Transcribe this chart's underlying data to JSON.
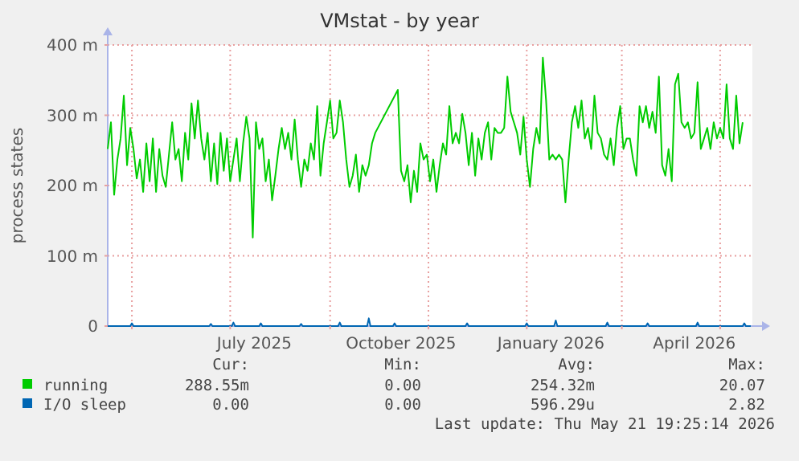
{
  "chart_data": {
    "type": "line",
    "title": "VMstat - by year",
    "ylabel": "process states",
    "xlim": [
      "2025-04-16",
      "2026-05-21"
    ],
    "xticks": [
      {
        "value": "2025-05-01",
        "label": null
      },
      {
        "value": "2025-07-01",
        "label": null
      },
      {
        "value": "2025-07-16",
        "label": "July 2025"
      },
      {
        "value": "2025-09-01",
        "label": null
      },
      {
        "value": "2025-10-15",
        "label": "October 2025"
      },
      {
        "value": "2025-11-01",
        "label": null
      },
      {
        "value": "2026-01-01",
        "label": null
      },
      {
        "value": "2026-01-16",
        "label": "January 2026"
      },
      {
        "value": "2026-03-01",
        "label": null
      },
      {
        "value": "2026-04-15",
        "label": "April 2026"
      },
      {
        "value": "2026-05-01",
        "label": null
      }
    ],
    "ylim": [
      0,
      400
    ],
    "yticks": [
      0,
      {
        "value": 100,
        "label": "100 m"
      },
      {
        "value": 200,
        "label": "200 m"
      },
      {
        "value": 300,
        "label": "300 m"
      },
      {
        "value": 400,
        "label": "400 m"
      }
    ],
    "grid": true,
    "legend": "bottom",
    "series": [
      {
        "name": "running",
        "color": "#00cc00",
        "x": [
          "2025-04-16",
          "2025-04-18",
          "2025-04-20",
          "2025-04-22",
          "2025-04-24",
          "2025-04-26",
          "2025-04-28",
          "2025-04-30",
          "2025-05-02",
          "2025-05-04",
          "2025-05-06",
          "2025-05-08",
          "2025-05-10",
          "2025-05-12",
          "2025-05-14",
          "2025-05-16",
          "2025-05-18",
          "2025-05-20",
          "2025-05-22",
          "2025-05-24",
          "2025-05-26",
          "2025-05-28",
          "2025-05-30",
          "2025-06-01",
          "2025-06-03",
          "2025-06-05",
          "2025-06-07",
          "2025-06-09",
          "2025-06-11",
          "2025-06-13",
          "2025-06-15",
          "2025-06-17",
          "2025-06-19",
          "2025-06-21",
          "2025-06-23",
          "2025-06-25",
          "2025-06-27",
          "2025-06-29",
          "2025-07-01",
          "2025-07-03",
          "2025-07-05",
          "2025-07-07",
          "2025-07-09",
          "2025-07-11",
          "2025-07-13",
          "2025-07-15",
          "2025-07-17",
          "2025-07-19",
          "2025-07-21",
          "2025-07-23",
          "2025-07-25",
          "2025-07-27",
          "2025-07-29",
          "2025-07-31",
          "2025-08-02",
          "2025-08-04",
          "2025-08-06",
          "2025-08-08",
          "2025-08-10",
          "2025-08-12",
          "2025-08-14",
          "2025-08-16",
          "2025-08-18",
          "2025-08-20",
          "2025-08-22",
          "2025-08-24",
          "2025-08-26",
          "2025-08-28",
          "2025-08-30",
          "2025-09-01",
          "2025-09-03",
          "2025-09-05",
          "2025-09-07",
          "2025-09-09",
          "2025-09-11",
          "2025-09-13",
          "2025-09-15",
          "2025-09-17",
          "2025-09-19",
          "2025-09-21",
          "2025-09-23",
          "2025-09-25",
          "2025-09-27",
          "2025-09-29",
          "2025-10-13",
          "2025-10-15",
          "2025-10-17",
          "2025-10-19",
          "2025-10-21",
          "2025-10-23",
          "2025-10-25",
          "2025-10-27",
          "2025-10-29",
          "2025-10-31",
          "2025-11-02",
          "2025-11-04",
          "2025-11-06",
          "2025-11-08",
          "2025-11-10",
          "2025-11-12",
          "2025-11-14",
          "2025-11-16",
          "2025-11-18",
          "2025-11-20",
          "2025-11-22",
          "2025-11-24",
          "2025-11-26",
          "2025-11-28",
          "2025-11-30",
          "2025-12-02",
          "2025-12-04",
          "2025-12-06",
          "2025-12-08",
          "2025-12-10",
          "2025-12-12",
          "2025-12-14",
          "2025-12-16",
          "2025-12-18",
          "2025-12-20",
          "2025-12-22",
          "2025-12-24",
          "2025-12-26",
          "2025-12-28",
          "2025-12-30",
          "2026-01-01",
          "2026-01-03",
          "2026-01-05",
          "2026-01-07",
          "2026-01-09",
          "2026-01-11",
          "2026-01-13",
          "2026-01-15",
          "2026-01-17",
          "2026-01-19",
          "2026-01-21",
          "2026-01-23",
          "2026-01-25",
          "2026-01-27",
          "2026-01-29",
          "2026-01-31",
          "2026-02-02",
          "2026-02-04",
          "2026-02-06",
          "2026-02-08",
          "2026-02-10",
          "2026-02-12",
          "2026-02-14",
          "2026-02-16",
          "2026-02-18",
          "2026-02-20",
          "2026-02-22",
          "2026-02-24",
          "2026-02-26",
          "2026-02-28",
          "2026-03-02",
          "2026-03-04",
          "2026-03-06",
          "2026-03-08",
          "2026-03-10",
          "2026-03-12",
          "2026-03-14",
          "2026-03-16",
          "2026-03-18",
          "2026-03-20",
          "2026-03-22",
          "2026-03-24",
          "2026-03-26",
          "2026-03-28",
          "2026-03-30",
          "2026-04-01",
          "2026-04-03",
          "2026-04-05",
          "2026-04-07",
          "2026-04-09",
          "2026-04-11",
          "2026-04-13",
          "2026-04-15",
          "2026-04-17",
          "2026-04-19",
          "2026-04-21",
          "2026-04-23",
          "2026-04-25",
          "2026-04-27",
          "2026-04-29",
          "2026-05-01",
          "2026-05-03",
          "2026-05-05",
          "2026-05-07",
          "2026-05-09",
          "2026-05-11",
          "2026-05-13",
          "2026-05-15"
        ],
        "values": [
          252,
          290,
          187,
          237,
          267,
          328,
          229,
          282,
          252,
          210,
          237,
          191,
          260,
          206,
          267,
          191,
          252,
          214,
          198,
          244,
          290,
          237,
          252,
          206,
          275,
          237,
          317,
          267,
          321,
          267,
          237,
          275,
          206,
          260,
          202,
          275,
          221,
          267,
          206,
          237,
          267,
          206,
          260,
          298,
          267,
          126,
          290,
          252,
          267,
          206,
          237,
          179,
          214,
          252,
          282,
          252,
          275,
          237,
          294,
          237,
          198,
          237,
          221,
          260,
          237,
          313,
          214,
          260,
          290,
          321,
          267,
          275,
          321,
          290,
          237,
          198,
          214,
          244,
          191,
          229,
          214,
          229,
          260,
          275,
          336,
          221,
          206,
          229,
          176,
          221,
          191,
          260,
          237,
          244,
          206,
          237,
          191,
          229,
          260,
          244,
          313,
          260,
          275,
          260,
          302,
          275,
          229,
          275,
          214,
          267,
          237,
          275,
          290,
          237,
          282,
          275,
          275,
          282,
          355,
          305,
          290,
          275,
          244,
          298,
          237,
          198,
          252,
          282,
          260,
          382,
          321,
          237,
          244,
          237,
          244,
          237,
          176,
          237,
          290,
          313,
          282,
          321,
          267,
          282,
          252,
          328,
          275,
          267,
          244,
          237,
          267,
          229,
          282,
          313,
          252,
          267,
          267,
          237,
          214,
          313,
          290,
          313,
          282,
          305,
          275,
          355,
          229,
          214,
          252,
          206,
          344,
          359,
          290,
          282,
          290,
          267,
          275,
          347,
          252,
          267,
          282,
          252,
          290,
          267,
          282,
          267,
          344,
          267,
          252,
          328,
          260,
          290
        ]
      },
      {
        "name": "I/O sleep",
        "color": "#0066b3",
        "x": [
          "2025-04-16",
          "2025-04-30",
          "2025-05-01",
          "2025-05-02",
          "2025-06-18",
          "2025-06-19",
          "2025-06-20",
          "2025-07-02",
          "2025-07-03",
          "2025-07-04",
          "2025-07-19",
          "2025-07-20",
          "2025-07-21",
          "2025-08-13",
          "2025-08-14",
          "2025-08-15",
          "2025-09-06",
          "2025-09-07",
          "2025-09-08",
          "2025-09-24",
          "2025-09-25",
          "2025-09-26",
          "2025-10-10",
          "2025-10-11",
          "2025-10-12",
          "2025-11-24",
          "2025-11-25",
          "2025-11-26",
          "2025-12-31",
          "2026-01-01",
          "2026-01-02",
          "2026-01-18",
          "2026-01-19",
          "2026-01-20",
          "2026-02-19",
          "2026-02-20",
          "2026-02-21",
          "2026-03-16",
          "2026-03-17",
          "2026-03-18",
          "2026-04-16",
          "2026-04-17",
          "2026-04-18",
          "2026-05-15",
          "2026-05-16",
          "2026-05-17",
          "2026-05-20"
        ],
        "values": [
          0,
          0,
          4,
          0,
          0,
          3,
          0,
          0,
          5,
          0,
          0,
          4,
          0,
          0,
          3,
          0,
          0,
          5,
          0,
          0,
          11,
          0,
          0,
          4,
          0,
          0,
          4,
          0,
          0,
          4,
          0,
          0,
          8,
          0,
          0,
          5,
          0,
          0,
          4,
          0,
          0,
          5,
          0,
          0,
          4,
          0,
          0
        ]
      }
    ],
    "annotations": [
      "Cur:",
      "Min:",
      "Avg:",
      "Max:",
      "288.55m",
      "0.00",
      "254.32m",
      "20.07",
      "0.00",
      "0.00",
      "596.29u",
      "2.82",
      "Last update: Thu May 21 19:25:14 2026"
    ]
  }
}
